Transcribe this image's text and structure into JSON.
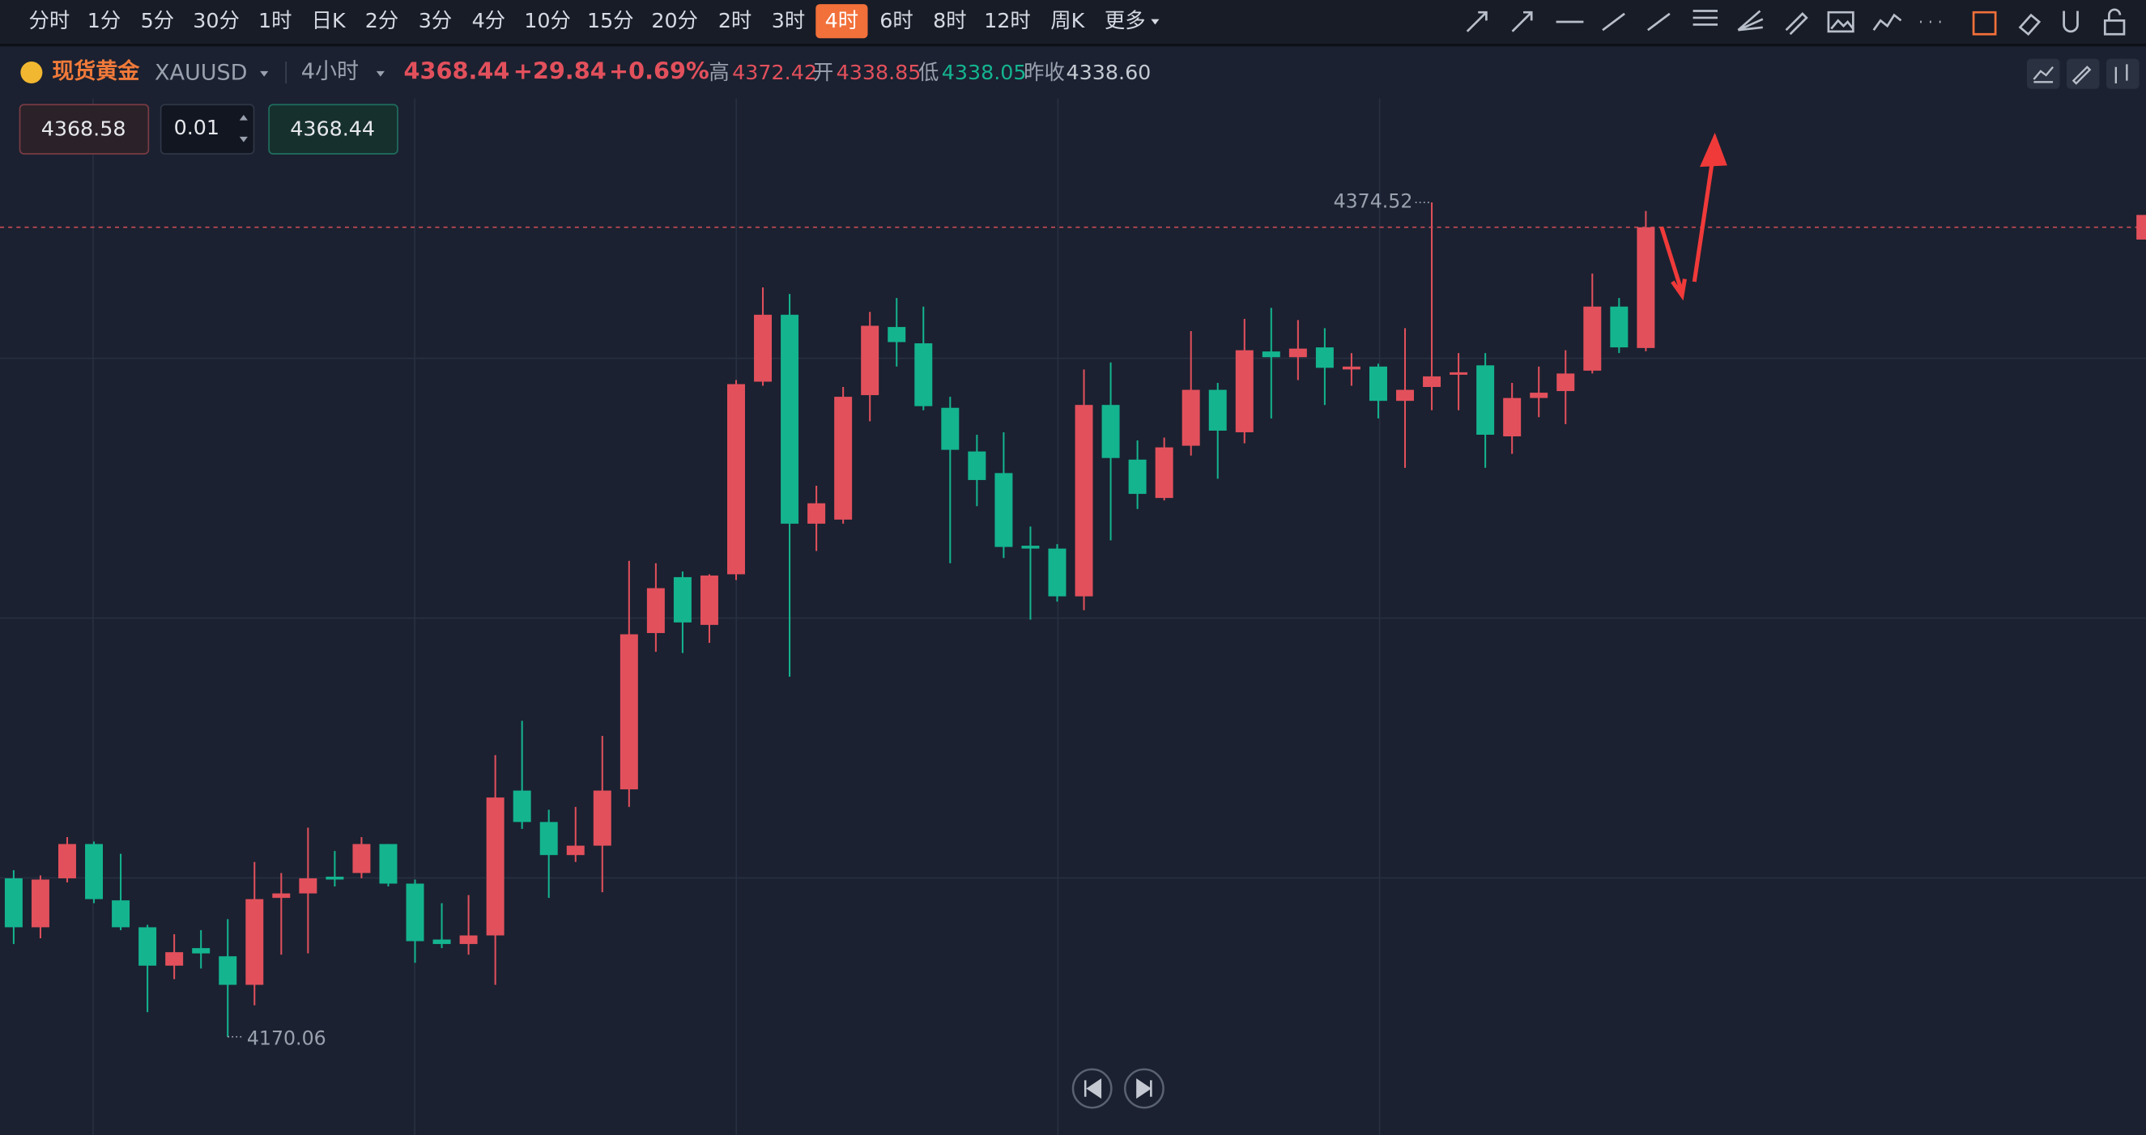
{
  "toolbar": {
    "intervals": [
      "分时",
      "1分",
      "5分",
      "30分",
      "1时",
      "日K",
      "2分",
      "3分",
      "4分",
      "10分",
      "15分",
      "20分",
      "2时",
      "3时",
      "4时",
      "6时",
      "8时",
      "12时",
      "周K",
      "更多"
    ],
    "selected": 14
  },
  "header": {
    "symbol_name": "现货黄金",
    "symbol": "XAUUSD",
    "period": "4小时",
    "change": "+29.84",
    "change_pct": "+0.69%",
    "high_label": "高",
    "open_label": "开",
    "low_label": "低",
    "prev_close_label": "昨收",
    "prev_close": "4338.60"
  },
  "order_panel": {
    "sell": "4368.58",
    "quantity": "0.01",
    "buy": "4368.44"
  },
  "chart_data": {
    "type": "candlestick",
    "up_color": "#e2505c",
    "down_color": "#14b48f",
    "ylim": [
      4146,
      4400
    ],
    "candles": [
      [
        4208.9,
        4210.9,
        4192.8,
        4196.9
      ],
      [
        4196.9,
        4209.6,
        4194.2,
        4208.6
      ],
      [
        4208.9,
        4219.0,
        4207.9,
        4217.3
      ],
      [
        4217.3,
        4217.9,
        4202.8,
        4203.8
      ],
      [
        4203.5,
        4214.9,
        4196.2,
        4196.9
      ],
      [
        4196.9,
        4197.5,
        4176.1,
        4187.5
      ],
      [
        4187.5,
        4195.2,
        4184.2,
        4190.8
      ],
      [
        4191.8,
        4196.2,
        4186.8,
        4190.5
      ],
      [
        4189.8,
        4198.9,
        4170.06,
        4182.8
      ],
      [
        4182.8,
        4212.9,
        4177.8,
        4203.8
      ],
      [
        4204.1,
        4210.2,
        4190.2,
        4205.2
      ],
      [
        4205.2,
        4221.3,
        4190.5,
        4208.9
      ],
      [
        4209.3,
        4215.6,
        4206.9,
        4208.6
      ],
      [
        4210.2,
        4219.0,
        4208.9,
        4217.3
      ],
      [
        4217.3,
        4217.3,
        4206.9,
        4207.6
      ],
      [
        4207.6,
        4208.6,
        4188.2,
        4193.5
      ],
      [
        4193.9,
        4202.8,
        4191.8,
        4192.8
      ],
      [
        4192.8,
        4204.8,
        4190.2,
        4194.9
      ],
      [
        4194.9,
        4239.1,
        4182.8,
        4228.7
      ],
      [
        4230.4,
        4247.5,
        4221.0,
        4222.7
      ],
      [
        4222.7,
        4225.7,
        4204.1,
        4214.6
      ],
      [
        4214.6,
        4226.4,
        4212.9,
        4216.9
      ],
      [
        4216.9,
        4243.8,
        4205.5,
        4230.4
      ],
      [
        4230.7,
        4286.7,
        4226.4,
        4268.7
      ],
      [
        4269.0,
        4286.1,
        4264.4,
        4280.0
      ],
      [
        4282.7,
        4284.1,
        4264.1,
        4271.6
      ],
      [
        4271.0,
        4283.4,
        4266.6,
        4283.1
      ],
      [
        4283.4,
        4331.0,
        4282.0,
        4330.0
      ],
      [
        4330.6,
        4353.7,
        4329.6,
        4347.0
      ],
      [
        4347.0,
        4352.1,
        4258.3,
        4295.8
      ],
      [
        4295.8,
        4305.1,
        4289.1,
        4300.8
      ],
      [
        4296.8,
        4329.3,
        4295.8,
        4326.9
      ],
      [
        4327.3,
        4347.7,
        4320.9,
        4344.3
      ],
      [
        4344.0,
        4351.1,
        4334.3,
        4340.3
      ],
      [
        4340.0,
        4349.0,
        4323.6,
        4324.6
      ],
      [
        4324.2,
        4326.9,
        4286.1,
        4313.9
      ],
      [
        4313.5,
        4317.6,
        4300.1,
        4306.5
      ],
      [
        4308.2,
        4318.2,
        4287.4,
        4290.1
      ],
      [
        4290.4,
        4295.1,
        4272.3,
        4289.7
      ],
      [
        4289.7,
        4290.8,
        4276.7,
        4278.0
      ],
      [
        4278.0,
        4333.6,
        4274.6,
        4324.9
      ],
      [
        4324.9,
        4335.3,
        4291.7,
        4311.9
      ],
      [
        4311.5,
        4316.2,
        4299.4,
        4303.1
      ],
      [
        4302.1,
        4316.9,
        4301.5,
        4314.5
      ],
      [
        4314.9,
        4343.0,
        4312.5,
        4328.6
      ],
      [
        4328.6,
        4330.3,
        4306.8,
        4318.6
      ],
      [
        4318.2,
        4346.0,
        4315.5,
        4338.3
      ],
      [
        4338.0,
        4348.7,
        4321.6,
        4336.6
      ],
      [
        4336.6,
        4345.7,
        4331.0,
        4338.7
      ],
      [
        4339.0,
        4343.7,
        4324.9,
        4334.0
      ],
      [
        4333.6,
        4337.6,
        4329.6,
        4334.3
      ],
      [
        4334.3,
        4335.0,
        4321.6,
        4325.9
      ],
      [
        4325.9,
        4343.7,
        4309.5,
        4328.6
      ],
      [
        4329.3,
        4374.52,
        4323.6,
        4331.9
      ],
      [
        4332.3,
        4337.6,
        4323.6,
        4332.9
      ],
      [
        4334.6,
        4337.6,
        4309.5,
        4317.6
      ],
      [
        4317.2,
        4330.3,
        4312.9,
        4326.6
      ],
      [
        4326.6,
        4334.3,
        4321.9,
        4327.9
      ],
      [
        4328.3,
        4338.3,
        4320.2,
        4332.6
      ],
      [
        4333.3,
        4357.1,
        4332.6,
        4349.0
      ],
      [
        4349.0,
        4351.1,
        4337.6,
        4339.0
      ],
      [
        4338.85,
        4372.42,
        4338.05,
        4368.44
      ]
    ]
  }
}
